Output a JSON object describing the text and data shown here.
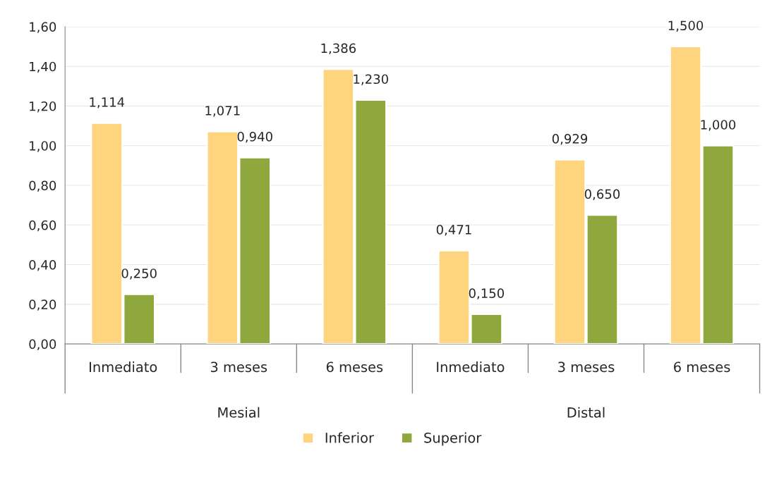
{
  "chart_data": {
    "type": "bar",
    "categories": [
      "Inmediato",
      "3 meses",
      "6 meses",
      "Inmediato",
      "3 meses",
      "6 meses"
    ],
    "annotations": [
      "Mesial",
      "Distal"
    ],
    "series": [
      {
        "name": "Inferior",
        "color": "#ffd47f",
        "values": [
          1.114,
          1.071,
          1.386,
          0.471,
          0.929,
          1.5
        ],
        "value_labels": [
          "1,114",
          "1,071",
          "1,386",
          "0,471",
          "0,929",
          "1,500"
        ]
      },
      {
        "name": "Superior",
        "color": "#8ea83e",
        "values": [
          0.25,
          0.94,
          1.23,
          0.15,
          0.65,
          1.0
        ],
        "value_labels": [
          "0,250",
          "0,940",
          "1,230",
          "0,150",
          "0,650",
          "1,000"
        ]
      }
    ],
    "ylim": [
      0,
      1.6
    ],
    "yticks": [
      {
        "value": 0,
        "label": "0,00"
      },
      {
        "value": 0.2,
        "label": "0,20"
      },
      {
        "value": 0.4,
        "label": "0,40"
      },
      {
        "value": 0.6,
        "label": "0,60"
      },
      {
        "value": 0.8,
        "label": "0,80"
      },
      {
        "value": 1.0,
        "label": "1,00"
      },
      {
        "value": 1.2,
        "label": "1,20"
      },
      {
        "value": 1.4,
        "label": "1,40"
      },
      {
        "value": 1.6,
        "label": "1,60"
      }
    ],
    "grid": "y",
    "legend": "bottom"
  }
}
